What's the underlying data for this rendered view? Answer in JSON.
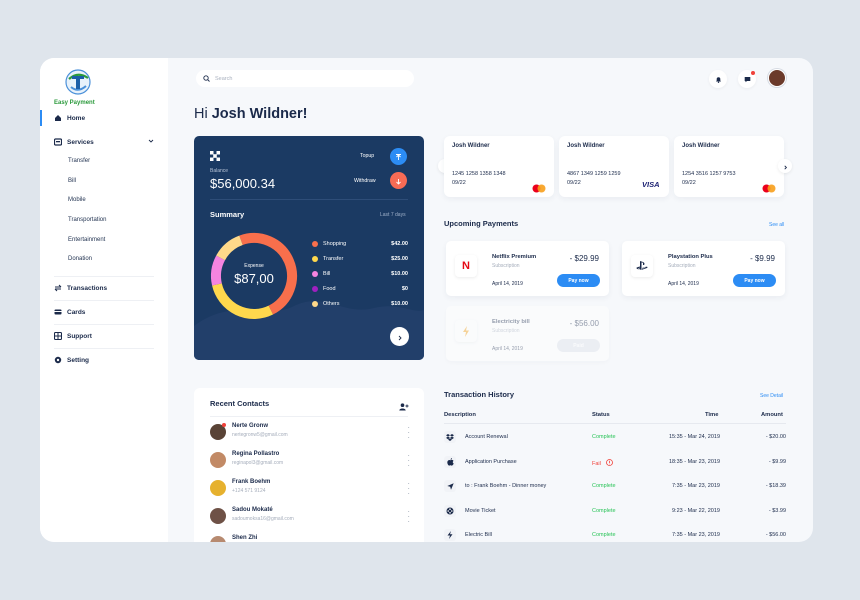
{
  "brand": {
    "name": "Easy Payment"
  },
  "sidebar": {
    "items": [
      {
        "label": "Home"
      },
      {
        "label": "Services"
      },
      {
        "label": "Transactions"
      },
      {
        "label": "Cards"
      },
      {
        "label": "Support"
      },
      {
        "label": "Setting"
      }
    ],
    "services_sub": [
      "Transfer",
      "Bill",
      "Mobile",
      "Transportation",
      "Entertainment",
      "Donation"
    ]
  },
  "search": {
    "placeholder": "Search"
  },
  "greeting": {
    "hi": "Hi",
    "name": "Josh Wildner!"
  },
  "balance": {
    "label": "Balance",
    "amount": "$56,000.34",
    "topup_label": "Topup",
    "withdraw_label": "Withdraw",
    "summary_title": "Summary",
    "period": "Last 7 days",
    "center_label": "Expense",
    "center_amount": "$87,00"
  },
  "chart_data": {
    "type": "pie",
    "labels": [
      "Shopping",
      "Transfer",
      "Bill",
      "Food",
      "Others"
    ],
    "values": [
      42,
      25,
      10,
      0,
      10
    ],
    "display_values": [
      "$42.00",
      "$25.00",
      "$10.00",
      "$0",
      "$10.00"
    ],
    "colors": [
      "#f86f4c",
      "#ffd84d",
      "#f584e0",
      "#a020c0",
      "#ffd98a"
    ]
  },
  "cards": [
    {
      "holder": "Josh Wildner",
      "number": "1245 1258 1358 1348",
      "expiry": "09/22",
      "network": "mastercard"
    },
    {
      "holder": "Josh Wildner",
      "number": "4867 1349 1259 1259",
      "expiry": "09/22",
      "network": "VISA"
    },
    {
      "holder": "Josh Wildner",
      "number": "1254 3516 1257 9753",
      "expiry": "09/22",
      "network": "mastercard"
    }
  ],
  "upcoming": {
    "title": "Upcoming Payments",
    "see_all": "See all",
    "items": [
      {
        "name": "Netflix Premium",
        "type": "Subscription",
        "date": "April 14, 2019",
        "amount": "- $29.99",
        "button": "Pay now"
      },
      {
        "name": "Playstation Plus",
        "type": "Subscription",
        "date": "April 14, 2019",
        "amount": "- $9.99",
        "button": "Pay now"
      },
      {
        "name": "Electricity bill",
        "type": "Subscription",
        "date": "April 14, 2019",
        "amount": "- $56.00",
        "button": "Paid"
      }
    ]
  },
  "contacts": {
    "title": "Recent Contacts",
    "items": [
      {
        "name": "Nerte Gronw",
        "email": "nertegronw5@gmail.com"
      },
      {
        "name": "Regina Pollastro",
        "email": "reginapol3@gmail.com"
      },
      {
        "name": "Frank Boehm",
        "email": "+124 571 9124"
      },
      {
        "name": "Sadou Mokaté",
        "email": "sadoumoksa16@gmail.com"
      },
      {
        "name": "Shen Zhi",
        "email": ""
      }
    ]
  },
  "transactions": {
    "title": "Transaction History",
    "see_detail": "See Detail",
    "columns": [
      "Description",
      "Status",
      "Time",
      "Amount"
    ],
    "rows": [
      {
        "desc": "Account Renewal",
        "status": "Complete",
        "time": "15:35 - Mar 24, 2019",
        "amount": "- $20.00",
        "icon": "dropbox-icon"
      },
      {
        "desc": "Application Purchase",
        "status": "Fail",
        "time": "18:35 - Mar 23, 2019",
        "amount": "- $9.99",
        "icon": "apple-icon"
      },
      {
        "desc": "to : Frank Boehm - Dinner money",
        "status": "Complete",
        "time": "7:35 - Mar 23, 2019",
        "amount": "- $18.39",
        "icon": "send-icon"
      },
      {
        "desc": "Movie Ticket",
        "status": "Complete",
        "time": "9:23 - Mar 22, 2019",
        "amount": "- $3.99",
        "icon": "film-icon"
      },
      {
        "desc": "Electric Bill",
        "status": "Complete",
        "time": "7:35 - Mar 23, 2019",
        "amount": "- $56.00",
        "icon": "bolt-icon"
      }
    ]
  }
}
